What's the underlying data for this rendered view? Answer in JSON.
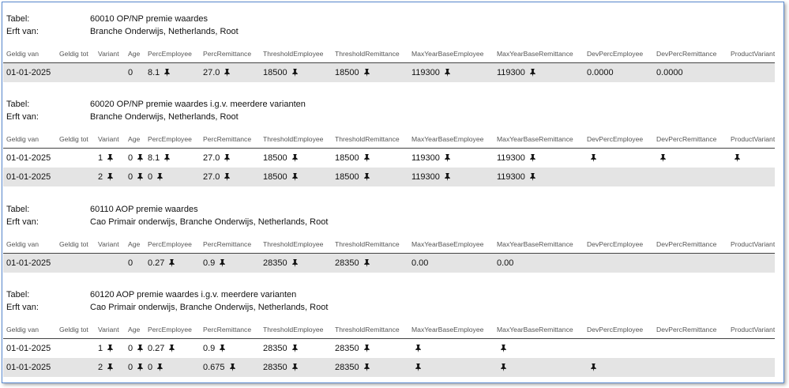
{
  "tables": [
    {
      "labels": [
        "Tabel:",
        "Erft van:"
      ],
      "title": "60010 OP/NP premie waardes",
      "inherits": "Branche Onderwijs, Netherlands, Root",
      "columns": [
        "Geldig van",
        "Geldig tot",
        "Variant",
        "Age",
        "PercEmployee",
        "PercRemittance",
        "ThresholdEmployee",
        "ThresholdRemittance",
        "MaxYearBaseEmployee",
        "MaxYearBaseRemittance",
        "DevPercEmployee",
        "DevPercRemittance",
        "ProductVariant"
      ],
      "rows": [
        [
          "01-01-2025",
          null,
          null,
          "0",
          {
            "text": "8.1",
            "pinned": true
          },
          {
            "text": "27.0",
            "pinned": true
          },
          {
            "text": "18500",
            "pinned": true
          },
          {
            "text": "18500",
            "pinned": true
          },
          {
            "text": "119300",
            "pinned": true
          },
          {
            "text": "119300",
            "pinned": true
          },
          "0.0000",
          "0.0000",
          null
        ]
      ]
    },
    {
      "labels": [
        "Tabel:",
        "Erft van:"
      ],
      "title": "60020 OP/NP premie waardes i.g.v. meerdere varianten",
      "inherits": "Branche Onderwijs, Netherlands, Root",
      "columns": [
        "Geldig van",
        "Geldig tot",
        "Variant",
        "Age",
        "PercEmployee",
        "PercRemittance",
        "ThresholdEmployee",
        "ThresholdRemittance",
        "MaxYearBaseEmployee",
        "MaxYearBaseRemittance",
        "DevPercEmployee",
        "DevPercRemittance",
        "ProductVariant"
      ],
      "rows": [
        [
          "01-01-2025",
          null,
          {
            "text": "1",
            "pinned": true
          },
          {
            "text": "0",
            "pinned": true
          },
          {
            "text": "8.1",
            "pinned": true
          },
          {
            "text": "27.0",
            "pinned": true
          },
          {
            "text": "18500",
            "pinned": true
          },
          {
            "text": "18500",
            "pinned": true
          },
          {
            "text": "119300",
            "pinned": true
          },
          {
            "text": "119300",
            "pinned": true
          },
          {
            "pinned": true
          },
          {
            "pinned": true
          },
          {
            "pinned": true
          }
        ],
        [
          "01-01-2025",
          null,
          {
            "text": "2",
            "pinned": true
          },
          {
            "text": "0",
            "pinned": true
          },
          {
            "text": "0",
            "pinned": true
          },
          {
            "text": "27.0",
            "pinned": true
          },
          {
            "text": "18500",
            "pinned": true
          },
          {
            "text": "18500",
            "pinned": true
          },
          {
            "text": "119300",
            "pinned": true
          },
          {
            "text": "119300",
            "pinned": true
          },
          null,
          null,
          null
        ]
      ]
    },
    {
      "labels": [
        "Tabel:",
        "Erft van:"
      ],
      "title": "60110 AOP premie waardes",
      "inherits": "Cao Primair onderwijs, Branche Onderwijs, Netherlands, Root",
      "columns": [
        "Geldig van",
        "Geldig tot",
        "Variant",
        "Age",
        "PercEmployee",
        "PercRemittance",
        "ThresholdEmployee",
        "ThresholdRemittance",
        "MaxYearBaseEmployee",
        "MaxYearBaseRemittance",
        "DevPercEmployee",
        "DevPercRemittance",
        "ProductVariant"
      ],
      "rows": [
        [
          "01-01-2025",
          null,
          null,
          "0",
          {
            "text": "0.27",
            "pinned": true
          },
          {
            "text": "0.9",
            "pinned": true
          },
          {
            "text": "28350",
            "pinned": true
          },
          {
            "text": "28350",
            "pinned": true
          },
          "0.00",
          "0.00",
          null,
          null,
          null
        ]
      ]
    },
    {
      "labels": [
        "Tabel:",
        "Erft van:"
      ],
      "title": "60120 AOP premie waardes i.g.v. meerdere varianten",
      "inherits": "Cao Primair onderwijs, Branche Onderwijs, Netherlands, Root",
      "columns": [
        "Geldig van",
        "Geldig tot",
        "Variant",
        "Age",
        "PercEmployee",
        "PercRemittance",
        "ThresholdEmployee",
        "ThresholdRemittance",
        "MaxYearBaseEmployee",
        "MaxYearBaseRemittance",
        "DevPercEmployee",
        "DevPercRemittance",
        "ProductVariant"
      ],
      "rows": [
        [
          "01-01-2025",
          null,
          {
            "text": "1",
            "pinned": true
          },
          {
            "text": "0",
            "pinned": true
          },
          {
            "text": "0.27",
            "pinned": true
          },
          {
            "text": "0.9",
            "pinned": true
          },
          {
            "text": "28350",
            "pinned": true
          },
          {
            "text": "28350",
            "pinned": true
          },
          {
            "pinned": true
          },
          {
            "pinned": true
          },
          null,
          null,
          null
        ],
        [
          "01-01-2025",
          null,
          {
            "text": "2",
            "pinned": true
          },
          {
            "text": "0",
            "pinned": true
          },
          {
            "text": "0",
            "pinned": true
          },
          {
            "text": "0.675",
            "pinned": true
          },
          {
            "text": "28350",
            "pinned": true
          },
          {
            "text": "28350",
            "pinned": true
          },
          {
            "pinned": true
          },
          {
            "pinned": true
          },
          {
            "pinned": true
          },
          null,
          null
        ]
      ]
    }
  ]
}
